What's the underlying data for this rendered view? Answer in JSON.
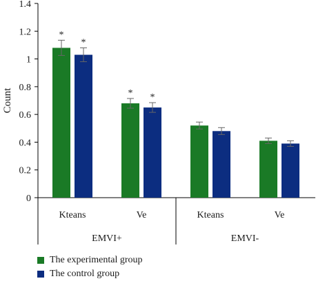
{
  "chart_data": {
    "type": "bar",
    "title": "",
    "xlabel": "",
    "ylabel": "Count",
    "ylim": [
      0,
      1.4
    ],
    "yticks": [
      0,
      0.2,
      0.4,
      0.6,
      0.8,
      1,
      1.2,
      1.4
    ],
    "ytick_labels": [
      "0",
      "0.2",
      "0.4",
      "0.6",
      "0.8",
      "1",
      "1.2",
      "1.4"
    ],
    "categories": [
      "Kteans",
      "Ve",
      "Kteans",
      "Ve"
    ],
    "groups": [
      {
        "label": "EMVI+",
        "categories": [
          "Kteans",
          "Ve"
        ]
      },
      {
        "label": "EMVI-",
        "categories": [
          "Kteans",
          "Ve"
        ]
      }
    ],
    "series": [
      {
        "name": "The experimental group",
        "color": "#1a7a26",
        "values": [
          1.08,
          0.68,
          0.52,
          0.41
        ],
        "errors": [
          0.055,
          0.035,
          0.025,
          0.02
        ],
        "annotations": [
          "*",
          "*",
          "",
          ""
        ]
      },
      {
        "name": "The control group",
        "color": "#0c2d80",
        "values": [
          1.03,
          0.65,
          0.48,
          0.39
        ],
        "errors": [
          0.05,
          0.035,
          0.025,
          0.02
        ],
        "annotations": [
          "*",
          "*",
          "",
          ""
        ]
      }
    ],
    "legend_position": "bottom-left",
    "grid": false
  }
}
